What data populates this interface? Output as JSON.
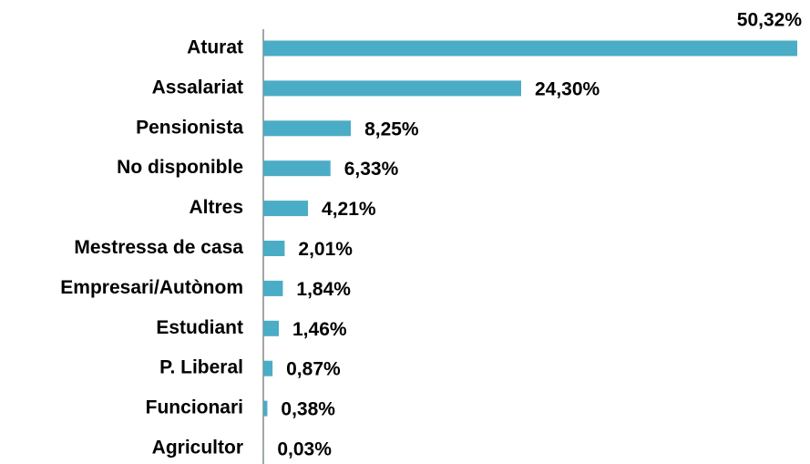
{
  "chart_data": {
    "type": "bar",
    "orientation": "horizontal",
    "color": "#4bacc6",
    "categories": [
      "Aturat",
      "Assalariat",
      "Pensionista",
      "No disponible",
      "Altres",
      "Mestressa de casa",
      "Empresari/Autònom",
      "Estudiant",
      "P. Liberal",
      "Funcionari",
      "Agricultor"
    ],
    "values": [
      50.32,
      24.3,
      8.25,
      6.33,
      4.21,
      2.01,
      1.84,
      1.46,
      0.87,
      0.38,
      0.03
    ],
    "value_labels": [
      "50,32%",
      "24,30%",
      "8,25%",
      "6,33%",
      "4,21%",
      "2,01%",
      "1,84%",
      "1,46%",
      "0,87%",
      "0,38%",
      "0,03%"
    ]
  }
}
